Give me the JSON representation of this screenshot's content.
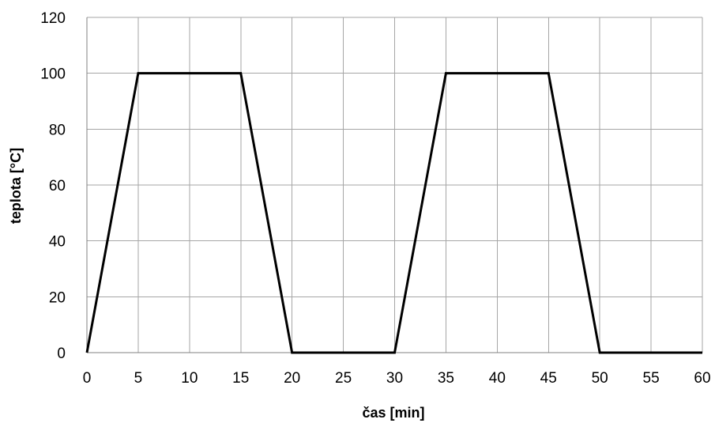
{
  "chart_data": {
    "type": "line",
    "title": "",
    "xlabel": "čas [min]",
    "ylabel": "teplota [°C]",
    "xlim": [
      0,
      60
    ],
    "ylim": [
      0,
      120
    ],
    "xticks": [
      0,
      5,
      10,
      15,
      20,
      25,
      30,
      35,
      40,
      45,
      50,
      55,
      60
    ],
    "yticks": [
      0,
      20,
      40,
      60,
      80,
      100,
      120
    ],
    "grid": true,
    "legend": "none",
    "series": [
      {
        "color": "#000000",
        "x": [
          0,
          5,
          15,
          20,
          30,
          35,
          45,
          50,
          60
        ],
        "y": [
          0,
          100,
          100,
          0,
          0,
          100,
          100,
          0,
          0
        ]
      }
    ]
  }
}
